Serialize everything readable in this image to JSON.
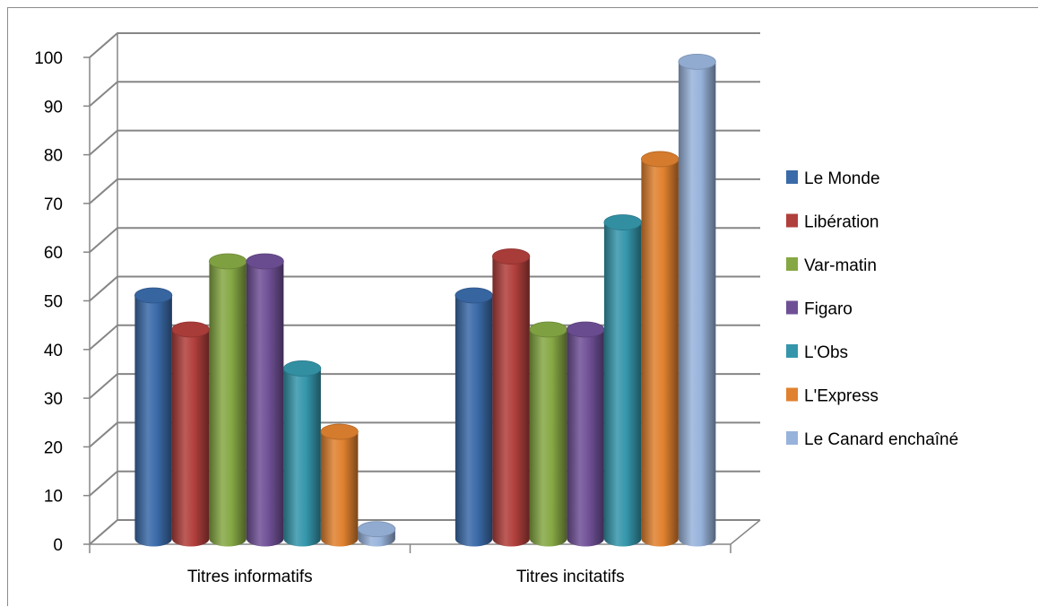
{
  "chart_data": {
    "type": "bar",
    "variant": "3d-clustered-cylinder",
    "title": "",
    "xlabel": "",
    "ylabel": "",
    "categories": [
      "Titres informatifs",
      "Titres incitatifs"
    ],
    "ylim": [
      0,
      100
    ],
    "yticks": [
      "0",
      "10",
      "20",
      "30",
      "40",
      "50",
      "60",
      "70",
      "80",
      "90",
      "100"
    ],
    "grid": true,
    "legend_position": "right",
    "series": [
      {
        "name": "Le Monde",
        "values": [
          50,
          50
        ],
        "color": "#3a6aa8"
      },
      {
        "name": "Libération",
        "values": [
          43,
          58
        ],
        "color": "#b13f3c"
      },
      {
        "name": "Var-matin",
        "values": [
          57,
          43
        ],
        "color": "#86a844"
      },
      {
        "name": "Figaro",
        "values": [
          57,
          43
        ],
        "color": "#6f5096"
      },
      {
        "name": "L'Obs",
        "values": [
          35,
          65
        ],
        "color": "#3596ab"
      },
      {
        "name": "L'Express",
        "values": [
          22,
          78
        ],
        "color": "#e0812f"
      },
      {
        "name": "Le Canard enchaîné",
        "values": [
          2,
          98
        ],
        "color": "#98b3db"
      }
    ]
  }
}
